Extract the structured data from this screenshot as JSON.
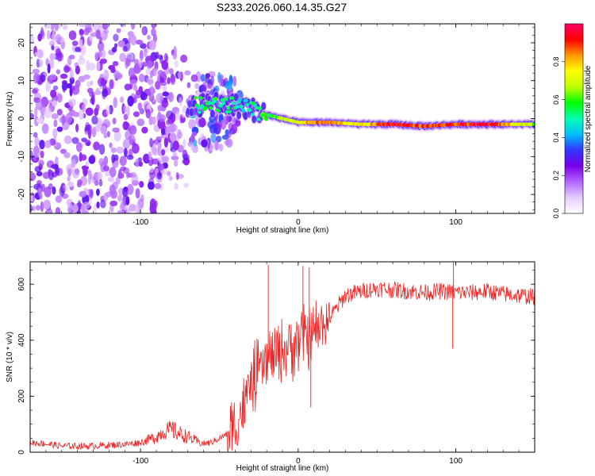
{
  "title": "S233.2026.060.14.35.G27",
  "colors": {
    "snr_line": "#ee2222",
    "axis": "#000000",
    "colorbar": [
      "#ffffff",
      "#e6ccff",
      "#b266ff",
      "#7a00e6",
      "#3333ff",
      "#00bfff",
      "#00ffb0",
      "#00ff00",
      "#bfff00",
      "#ffff00",
      "#ff9900",
      "#ff0000",
      "#ff0066"
    ]
  },
  "chart_data": [
    {
      "type": "heatmap",
      "name": "spectrogram",
      "title": "S233.2026.060.14.35.G27",
      "xlabel": "Height of straight line (km)",
      "ylabel": "Frequency (Hz)",
      "xlim": [
        -170,
        150
      ],
      "ylim": [
        -25,
        25
      ],
      "xticks": [
        -100,
        0,
        100
      ],
      "xtick_labels": [
        "-100",
        "0",
        "100"
      ],
      "yticks": [
        -20,
        -10,
        0,
        10,
        20
      ],
      "ytick_labels": [
        "-20",
        "-10",
        "0",
        "10",
        "20"
      ],
      "ridge": {
        "description": "Spectral line centered near 0 Hz above about -40 km; diffuse scattered energy below about -60 km",
        "x": [
          -40,
          -30,
          -20,
          -10,
          0,
          10,
          20,
          40,
          60,
          80,
          100,
          120,
          150
        ],
        "frequency": [
          3.5,
          2.5,
          1.0,
          0.0,
          -1.0,
          -1.0,
          -1.0,
          -1.5,
          -1.5,
          -2.0,
          -1.5,
          -1.5,
          -1.5
        ],
        "amplitude": [
          0.35,
          0.4,
          0.5,
          0.6,
          0.7,
          0.85,
          0.85,
          0.7,
          1.0,
          0.9,
          0.9,
          1.0,
          0.6
        ]
      }
    },
    {
      "type": "colorbar",
      "label": "Normalized spectral amplitude",
      "range": [
        0,
        1
      ],
      "ticks": [
        0.0,
        0.2,
        0.4,
        0.6,
        0.8
      ],
      "tick_labels": [
        "0.0",
        "0.2",
        "0.4",
        "0.6",
        "0.8"
      ]
    },
    {
      "type": "line",
      "name": "snr",
      "xlabel": "Height of straight line (km)",
      "ylabel": "SNR (10 * v/v)",
      "xlim": [
        -170,
        150
      ],
      "ylim": [
        0,
        680
      ],
      "xticks": [
        -100,
        0,
        100
      ],
      "xtick_labels": [
        "-100",
        "0",
        "100"
      ],
      "yticks": [
        0,
        200,
        400,
        600
      ],
      "ytick_labels": [
        "0",
        "200",
        "400",
        "600"
      ],
      "x": [
        -170,
        -160,
        -150,
        -140,
        -130,
        -120,
        -110,
        -100,
        -90,
        -85,
        -80,
        -75,
        -70,
        -65,
        -60,
        -55,
        -50,
        -45,
        -40,
        -35,
        -30,
        -25,
        -20,
        -15,
        -10,
        -5,
        0,
        5,
        10,
        15,
        20,
        25,
        30,
        40,
        50,
        60,
        70,
        80,
        90,
        100,
        110,
        120,
        130,
        140,
        150
      ],
      "values": [
        35,
        30,
        22,
        22,
        22,
        25,
        28,
        35,
        55,
        75,
        80,
        65,
        55,
        40,
        30,
        35,
        50,
        65,
        90,
        160,
        240,
        290,
        320,
        345,
        360,
        380,
        400,
        410,
        420,
        450,
        480,
        520,
        560,
        575,
        585,
        580,
        575,
        570,
        575,
        570,
        570,
        575,
        565,
        560,
        555
      ],
      "spikes": [
        {
          "x": -19,
          "value": 670
        },
        {
          "x": 3,
          "value": 665
        },
        {
          "x": 7,
          "value": 660
        },
        {
          "x": 8,
          "value": 160
        },
        {
          "x": 98,
          "value": 370
        },
        {
          "x": 98.5,
          "value": 680
        }
      ]
    }
  ]
}
